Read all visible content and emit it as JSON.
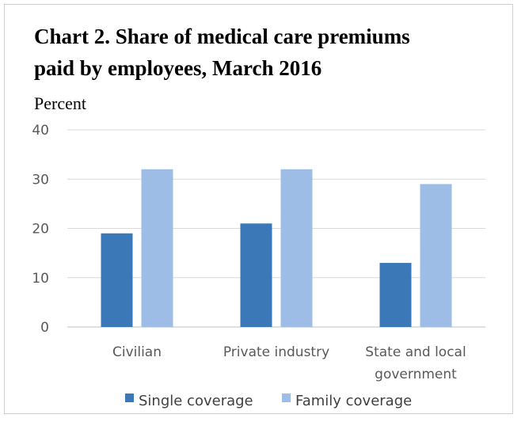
{
  "chart_data": {
    "type": "bar",
    "title": "Chart 2. Share of medical care premiums\npaid by employees, March 2016",
    "ylabel": "Percent",
    "xlabel": "",
    "ylim": [
      0,
      40
    ],
    "yticks": [
      0,
      10,
      20,
      30,
      40
    ],
    "grid": true,
    "legend_position": "bottom",
    "categories": [
      [
        "Civilian"
      ],
      [
        "Private industry"
      ],
      [
        "State and local",
        "government"
      ]
    ],
    "series": [
      {
        "name": "Single coverage",
        "color": "#3b78b8",
        "values": [
          19,
          21,
          13
        ]
      },
      {
        "name": "Family coverage",
        "color": "#9dbde6",
        "values": [
          32,
          32,
          29
        ]
      }
    ]
  }
}
